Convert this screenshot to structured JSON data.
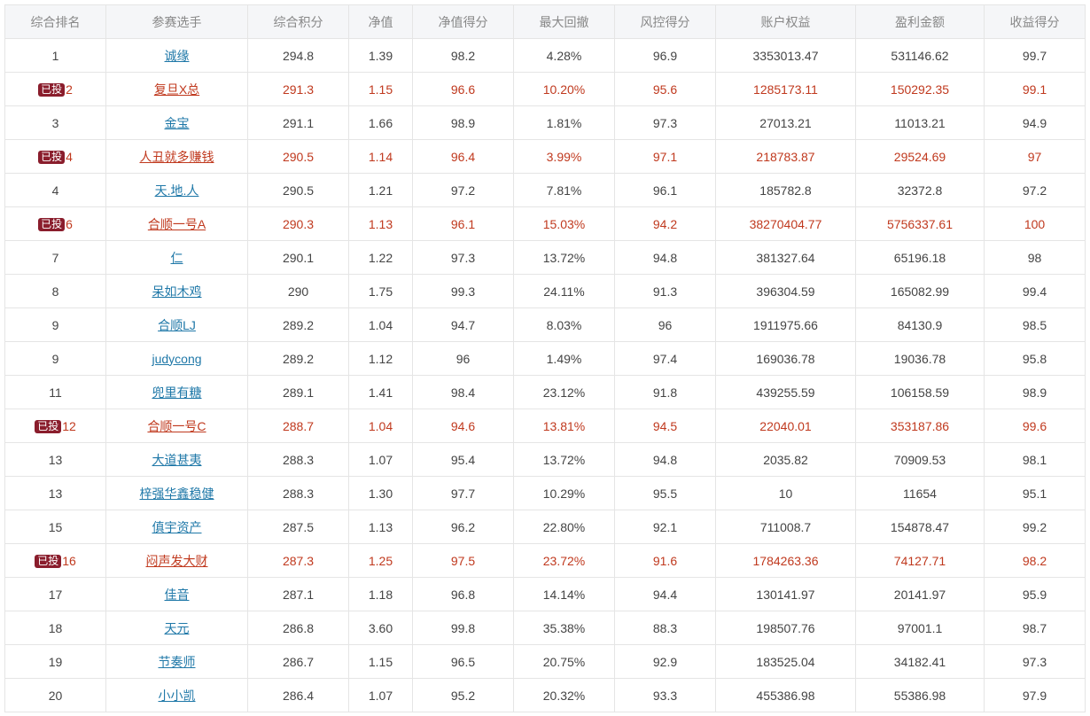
{
  "headers": [
    "综合排名",
    "参赛选手",
    "综合积分",
    "净值",
    "净值得分",
    "最大回撤",
    "风控得分",
    "账户权益",
    "盈利金额",
    "收益得分"
  ],
  "badge_label": "已投",
  "colors": {
    "invested_text": "#c0391e",
    "link": "#1f78a8",
    "badge_bg": "#8a1d2c"
  },
  "rows": [
    {
      "rank": "1",
      "invested": false,
      "player": "诚缘",
      "score": "294.8",
      "nav": "1.39",
      "nav_score": "98.2",
      "max_drawdown": "4.28%",
      "risk_score": "96.9",
      "equity": "3353013.47",
      "profit": "531146.62",
      "return_score": "99.7"
    },
    {
      "rank": "2",
      "invested": true,
      "player": "复旦X总",
      "score": "291.3",
      "nav": "1.15",
      "nav_score": "96.6",
      "max_drawdown": "10.20%",
      "risk_score": "95.6",
      "equity": "1285173.11",
      "profit": "150292.35",
      "return_score": "99.1"
    },
    {
      "rank": "3",
      "invested": false,
      "player": "金宝",
      "score": "291.1",
      "nav": "1.66",
      "nav_score": "98.9",
      "max_drawdown": "1.81%",
      "risk_score": "97.3",
      "equity": "27013.21",
      "profit": "11013.21",
      "return_score": "94.9"
    },
    {
      "rank": "4",
      "invested": true,
      "player": "人丑就多赚钱",
      "score": "290.5",
      "nav": "1.14",
      "nav_score": "96.4",
      "max_drawdown": "3.99%",
      "risk_score": "97.1",
      "equity": "218783.87",
      "profit": "29524.69",
      "return_score": "97"
    },
    {
      "rank": "4",
      "invested": false,
      "player": "天.地.人",
      "score": "290.5",
      "nav": "1.21",
      "nav_score": "97.2",
      "max_drawdown": "7.81%",
      "risk_score": "96.1",
      "equity": "185782.8",
      "profit": "32372.8",
      "return_score": "97.2"
    },
    {
      "rank": "6",
      "invested": true,
      "player": "合顺一号A",
      "score": "290.3",
      "nav": "1.13",
      "nav_score": "96.1",
      "max_drawdown": "15.03%",
      "risk_score": "94.2",
      "equity": "38270404.77",
      "profit": "5756337.61",
      "return_score": "100"
    },
    {
      "rank": "7",
      "invested": false,
      "player": "仁",
      "score": "290.1",
      "nav": "1.22",
      "nav_score": "97.3",
      "max_drawdown": "13.72%",
      "risk_score": "94.8",
      "equity": "381327.64",
      "profit": "65196.18",
      "return_score": "98"
    },
    {
      "rank": "8",
      "invested": false,
      "player": "呆如木鸡",
      "score": "290",
      "nav": "1.75",
      "nav_score": "99.3",
      "max_drawdown": "24.11%",
      "risk_score": "91.3",
      "equity": "396304.59",
      "profit": "165082.99",
      "return_score": "99.4"
    },
    {
      "rank": "9",
      "invested": false,
      "player": "合顺LJ",
      "score": "289.2",
      "nav": "1.04",
      "nav_score": "94.7",
      "max_drawdown": "8.03%",
      "risk_score": "96",
      "equity": "1911975.66",
      "profit": "84130.9",
      "return_score": "98.5"
    },
    {
      "rank": "9",
      "invested": false,
      "player": "judycong",
      "score": "289.2",
      "nav": "1.12",
      "nav_score": "96",
      "max_drawdown": "1.49%",
      "risk_score": "97.4",
      "equity": "169036.78",
      "profit": "19036.78",
      "return_score": "95.8"
    },
    {
      "rank": "11",
      "invested": false,
      "player": "兜里有糖",
      "score": "289.1",
      "nav": "1.41",
      "nav_score": "98.4",
      "max_drawdown": "23.12%",
      "risk_score": "91.8",
      "equity": "439255.59",
      "profit": "106158.59",
      "return_score": "98.9"
    },
    {
      "rank": "12",
      "invested": true,
      "player": "合顺一号C",
      "score": "288.7",
      "nav": "1.04",
      "nav_score": "94.6",
      "max_drawdown": "13.81%",
      "risk_score": "94.5",
      "equity": "22040.01",
      "profit": "353187.86",
      "return_score": "99.6"
    },
    {
      "rank": "13",
      "invested": false,
      "player": "大道甚夷",
      "score": "288.3",
      "nav": "1.07",
      "nav_score": "95.4",
      "max_drawdown": "13.72%",
      "risk_score": "94.8",
      "equity": "2035.82",
      "profit": "70909.53",
      "return_score": "98.1"
    },
    {
      "rank": "13",
      "invested": false,
      "player": "梓强华鑫稳健",
      "score": "288.3",
      "nav": "1.30",
      "nav_score": "97.7",
      "max_drawdown": "10.29%",
      "risk_score": "95.5",
      "equity": "10",
      "profit": "11654",
      "return_score": "95.1"
    },
    {
      "rank": "15",
      "invested": false,
      "player": "傎宇资产",
      "score": "287.5",
      "nav": "1.13",
      "nav_score": "96.2",
      "max_drawdown": "22.80%",
      "risk_score": "92.1",
      "equity": "711008.7",
      "profit": "154878.47",
      "return_score": "99.2"
    },
    {
      "rank": "16",
      "invested": true,
      "player": "闷声发大财",
      "score": "287.3",
      "nav": "1.25",
      "nav_score": "97.5",
      "max_drawdown": "23.72%",
      "risk_score": "91.6",
      "equity": "1784263.36",
      "profit": "74127.71",
      "return_score": "98.2"
    },
    {
      "rank": "17",
      "invested": false,
      "player": "佳音",
      "score": "287.1",
      "nav": "1.18",
      "nav_score": "96.8",
      "max_drawdown": "14.14%",
      "risk_score": "94.4",
      "equity": "130141.97",
      "profit": "20141.97",
      "return_score": "95.9"
    },
    {
      "rank": "18",
      "invested": false,
      "player": "天元",
      "score": "286.8",
      "nav": "3.60",
      "nav_score": "99.8",
      "max_drawdown": "35.38%",
      "risk_score": "88.3",
      "equity": "198507.76",
      "profit": "97001.1",
      "return_score": "98.7"
    },
    {
      "rank": "19",
      "invested": false,
      "player": "节奏师",
      "score": "286.7",
      "nav": "1.15",
      "nav_score": "96.5",
      "max_drawdown": "20.75%",
      "risk_score": "92.9",
      "equity": "183525.04",
      "profit": "34182.41",
      "return_score": "97.3"
    },
    {
      "rank": "20",
      "invested": false,
      "player": "小小凯",
      "score": "286.4",
      "nav": "1.07",
      "nav_score": "95.2",
      "max_drawdown": "20.32%",
      "risk_score": "93.3",
      "equity": "455386.98",
      "profit": "55386.98",
      "return_score": "97.9"
    }
  ]
}
